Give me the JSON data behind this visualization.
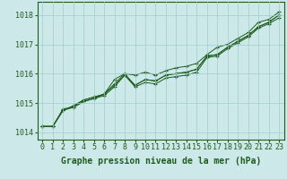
{
  "x": [
    0,
    1,
    2,
    3,
    4,
    5,
    6,
    7,
    8,
    9,
    10,
    11,
    12,
    13,
    14,
    15,
    16,
    17,
    18,
    19,
    20,
    21,
    22,
    23
  ],
  "line1": [
    1014.2,
    1014.2,
    1014.8,
    1014.85,
    1015.05,
    1015.15,
    1015.25,
    1015.55,
    1015.95,
    1015.55,
    1015.7,
    1015.65,
    1015.85,
    1015.9,
    1015.95,
    1016.05,
    1016.55,
    1016.6,
    1016.85,
    1017.05,
    1017.25,
    1017.55,
    1017.7,
    1017.9
  ],
  "line2": [
    1014.2,
    1014.2,
    1014.75,
    1014.9,
    1015.1,
    1015.2,
    1015.3,
    1015.6,
    1015.95,
    1015.6,
    1015.8,
    1015.75,
    1015.95,
    1016.0,
    1016.05,
    1016.15,
    1016.6,
    1016.65,
    1016.9,
    1017.1,
    1017.3,
    1017.6,
    1017.75,
    1018.0
  ],
  "line3": [
    1014.2,
    1014.2,
    1014.75,
    1014.9,
    1015.1,
    1015.2,
    1015.3,
    1015.65,
    1016.0,
    1015.6,
    1015.8,
    1015.75,
    1015.95,
    1016.0,
    1016.05,
    1016.15,
    1016.6,
    1016.65,
    1016.9,
    1017.1,
    1017.3,
    1017.6,
    1017.75,
    1018.0
  ],
  "line4": [
    1014.2,
    1014.2,
    1014.75,
    1014.85,
    1015.05,
    1015.15,
    1015.3,
    1015.8,
    1016.0,
    1015.95,
    1016.05,
    1015.95,
    1016.1,
    1016.2,
    1016.25,
    1016.35,
    1016.65,
    1016.9,
    1017.0,
    1017.2,
    1017.4,
    1017.75,
    1017.85,
    1018.1
  ],
  "bg_color": "#cde8e8",
  "grid_color": "#9ecece",
  "line_color": "#1e5c1e",
  "marker": "+",
  "ylabel_ticks": [
    1014,
    1015,
    1016,
    1017,
    1018
  ],
  "xlabel": "Graphe pression niveau de la mer (hPa)",
  "xlabel_fontsize": 7,
  "tick_fontsize": 6,
  "ylim": [
    1013.75,
    1018.45
  ],
  "xlim": [
    -0.5,
    23.5
  ]
}
